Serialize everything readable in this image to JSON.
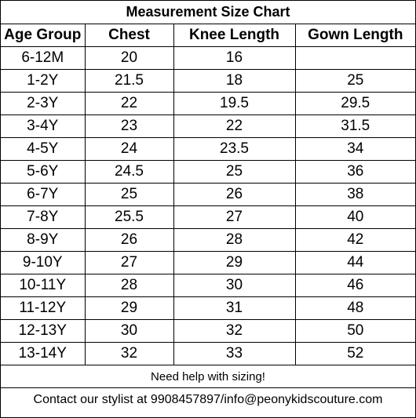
{
  "title": "Measurement Size Chart",
  "headers": [
    "Age Group",
    "Chest",
    "Knee Length",
    "Gown Length"
  ],
  "rows": [
    [
      "6-12M",
      "20",
      "16",
      ""
    ],
    [
      "1-2Y",
      "21.5",
      "18",
      "25"
    ],
    [
      "2-3Y",
      "22",
      "19.5",
      "29.5"
    ],
    [
      "3-4Y",
      "23",
      "22",
      "31.5"
    ],
    [
      "4-5Y",
      "24",
      "23.5",
      "34"
    ],
    [
      "5-6Y",
      "24.5",
      "25",
      "36"
    ],
    [
      "6-7Y",
      "25",
      "26",
      "38"
    ],
    [
      "7-8Y",
      "25.5",
      "27",
      "40"
    ],
    [
      "8-9Y",
      "26",
      "28",
      "42"
    ],
    [
      "9-10Y",
      "27",
      "29",
      "44"
    ],
    [
      "10-11Y",
      "28",
      "30",
      "46"
    ],
    [
      "11-12Y",
      "29",
      "31",
      "48"
    ],
    [
      "12-13Y",
      "30",
      "32",
      "50"
    ],
    [
      "13-14Y",
      "32",
      "33",
      "52"
    ]
  ],
  "note": "Need help with sizing!",
  "contact": "Contact our stylist at 9908457897/info@peonykidscouture.com"
}
